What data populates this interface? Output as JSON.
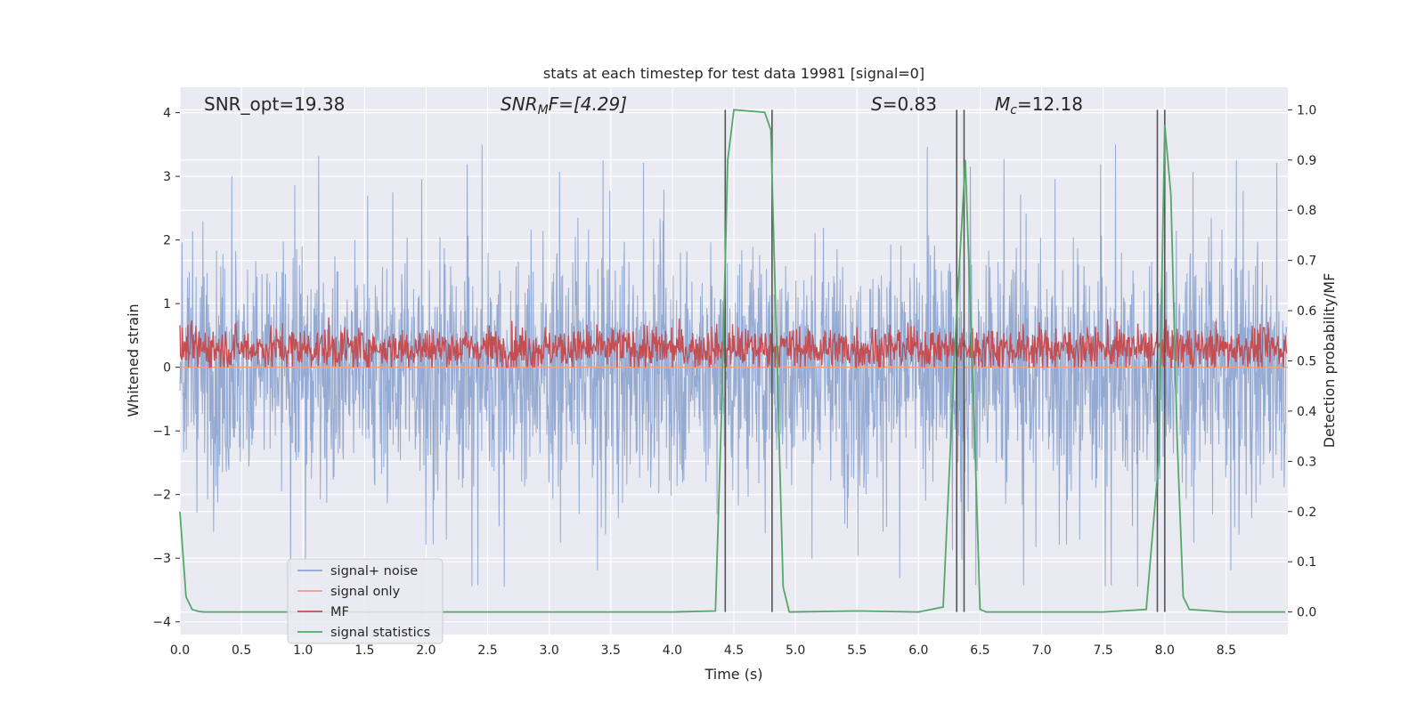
{
  "chart_data": {
    "type": "line",
    "title": "stats at each timestep for test data 19981 [signal=0]",
    "xlabel": "Time (s)",
    "ylabel_left": "Whitened strain",
    "ylabel_right": "Detection probability/MF",
    "xlim": [
      0.0,
      9.0
    ],
    "ylim_left": [
      -4.2,
      4.4
    ],
    "ylim_right": [
      -0.045,
      1.045
    ],
    "x_ticks": [
      "0.0",
      "0.5",
      "1.0",
      "1.5",
      "2.0",
      "2.5",
      "3.0",
      "3.5",
      "4.0",
      "4.5",
      "5.0",
      "5.5",
      "6.0",
      "6.5",
      "7.0",
      "7.5",
      "8.0",
      "8.5"
    ],
    "y_left_ticks": [
      "4",
      "3",
      "2",
      "1",
      "0",
      "−1",
      "−2",
      "−3",
      "−4"
    ],
    "y_right_ticks": [
      "1.0",
      "0.9",
      "0.8",
      "0.7",
      "0.6",
      "0.5",
      "0.4",
      "0.3",
      "0.2",
      "0.1",
      "0.0"
    ],
    "grid": true,
    "legend_position": "lower-left",
    "annotations": {
      "snr_opt": "SNR_opt=19.38",
      "snr_mf_base": "SNR",
      "snr_mf_sub": "M",
      "snr_mf_rest": "F=[4.29]",
      "s_base": "S",
      "s_rest": "=0.83",
      "mc_base": "M",
      "mc_sub": "c",
      "mc_rest": "=12.18"
    },
    "series": [
      {
        "name": "signal+ noise",
        "color": "#8fa6d0",
        "axis": "left",
        "description_values": {
          "approx_upper_envelope": 2.2,
          "approx_lower_envelope": -2.0,
          "max_peak": 4.0,
          "min_peak": -3.45
        }
      },
      {
        "name": "signal only",
        "color": "#e9a28c",
        "axis": "left",
        "values_constant": 0.0
      },
      {
        "name": "MF",
        "color": "#c44e52",
        "axis": "left",
        "description_values": {
          "approx_mean": 0.3,
          "approx_range": [
            0.0,
            0.9
          ]
        }
      },
      {
        "name": "signal statistics",
        "color": "#55a868",
        "axis": "right",
        "x": [
          0.0,
          0.05,
          0.1,
          0.15,
          0.2,
          0.5,
          1.0,
          2.0,
          3.0,
          4.0,
          4.35,
          4.4,
          4.45,
          4.5,
          4.75,
          4.8,
          4.85,
          4.9,
          4.95,
          5.5,
          6.0,
          6.2,
          6.3,
          6.38,
          6.45,
          6.5,
          6.55,
          7.0,
          7.5,
          7.85,
          7.95,
          8.0,
          8.05,
          8.1,
          8.15,
          8.2,
          8.5,
          8.98
        ],
        "y": [
          0.2,
          0.03,
          0.005,
          0.001,
          0.0,
          0.0,
          0.0,
          0.0,
          0.0,
          0.0,
          0.002,
          0.4,
          0.9,
          1.0,
          0.995,
          0.96,
          0.5,
          0.05,
          0.0,
          0.002,
          0.0,
          0.01,
          0.55,
          0.9,
          0.4,
          0.005,
          0.0,
          0.0,
          0.0,
          0.005,
          0.3,
          0.97,
          0.83,
          0.35,
          0.03,
          0.005,
          0.0,
          0.0
        ]
      }
    ],
    "detection_markers": [
      4.43,
      4.81,
      6.31,
      6.37,
      7.94,
      8.0
    ]
  }
}
